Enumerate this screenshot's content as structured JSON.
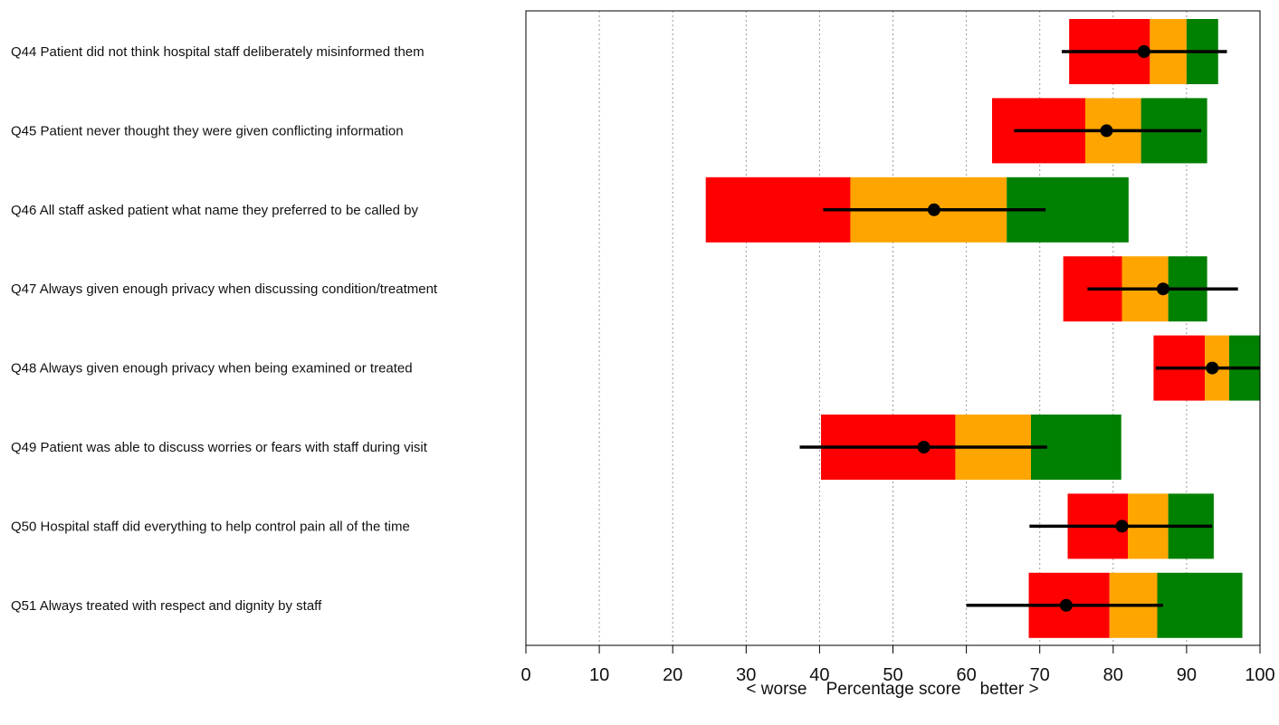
{
  "chart_data": {
    "type": "bar",
    "subtype": "stacked-range-with-confidence-interval",
    "xlabel": "< worse    Percentage score    better >",
    "xlim": [
      0,
      100
    ],
    "xticks": [
      0,
      10,
      20,
      30,
      40,
      50,
      60,
      70,
      80,
      90,
      100
    ],
    "grid": "vertical dotted",
    "band_colors": {
      "lower": "#ff0000",
      "middle": "#ffa500",
      "upper": "#008000"
    },
    "marker_color": "#000000",
    "categories": [
      "Q44 Patient did not think hospital staff deliberately misinformed them",
      "Q45 Patient never thought they were given conflicting information",
      "Q46 All staff asked patient what name they preferred to be called by",
      "Q47 Always given enough privacy when discussing condition/treatment",
      "Q48 Always given enough privacy when being examined or treated",
      "Q49 Patient was able to discuss worries or fears with staff during visit",
      "Q50 Hospital staff did everything to help control pain all of the time",
      "Q51 Always treated with respect and dignity by staff"
    ],
    "series": [
      {
        "key": "range_min",
        "values": [
          74,
          63.5,
          24.5,
          73.2,
          85.5,
          40.2,
          73.8,
          68.5
        ]
      },
      {
        "key": "q1",
        "values": [
          85,
          76.2,
          44.2,
          81.2,
          92.5,
          58.5,
          82,
          79.5
        ]
      },
      {
        "key": "q3",
        "values": [
          90,
          83.8,
          65.5,
          87.5,
          95.8,
          68.8,
          87.5,
          86
        ]
      },
      {
        "key": "range_max",
        "values": [
          94.3,
          92.8,
          82.1,
          92.8,
          100,
          81.1,
          93.7,
          97.6
        ]
      },
      {
        "key": "score",
        "values": [
          84.2,
          79.1,
          55.6,
          86.8,
          93.5,
          54.2,
          81.2,
          73.6
        ]
      },
      {
        "key": "ci_low",
        "values": [
          73,
          66.5,
          40.5,
          76.5,
          85.8,
          37.3,
          68.6,
          60
        ]
      },
      {
        "key": "ci_high",
        "values": [
          95.5,
          92,
          70.8,
          97,
          100,
          71,
          93.5,
          86.8
        ]
      }
    ]
  }
}
